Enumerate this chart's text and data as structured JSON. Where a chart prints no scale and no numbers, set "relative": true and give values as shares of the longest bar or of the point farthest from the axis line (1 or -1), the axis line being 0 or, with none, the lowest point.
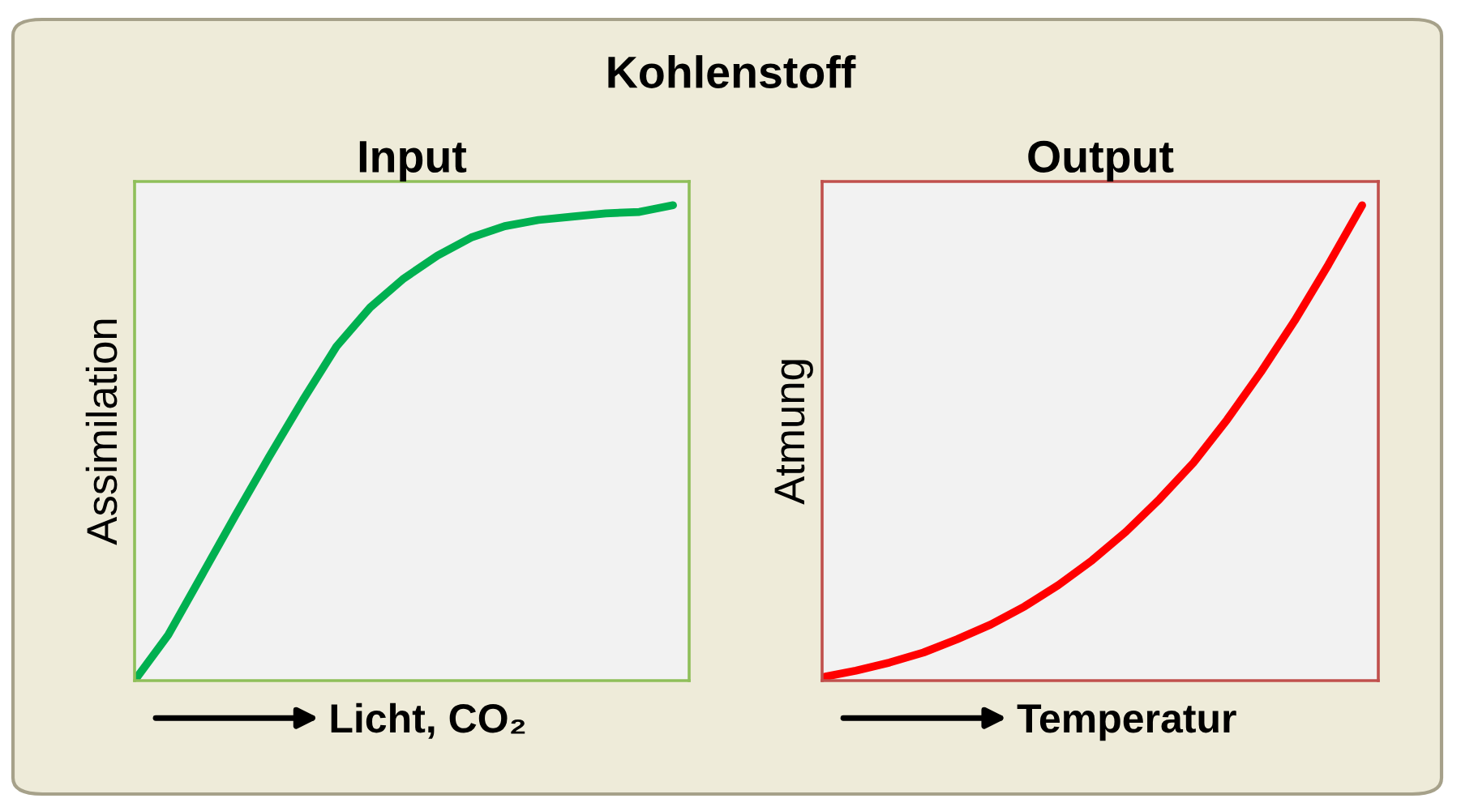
{
  "chart_data": [
    {
      "type": "line",
      "title": "Input",
      "xlabel": "Licht, CO₂",
      "ylabel": "Assimilation",
      "relative": true,
      "annotations": [
        "Kohlenstoff"
      ],
      "tick_labels": false,
      "legend": false,
      "categories": [
        null,
        null,
        null,
        null,
        null,
        null,
        null,
        null,
        null,
        null,
        null,
        null,
        null,
        null,
        null,
        null,
        null
      ],
      "series": [
        {
          "color": "#00b050",
          "values": [
            0,
            0.096,
            0.222,
            0.348,
            0.471,
            0.59,
            0.703,
            0.785,
            0.846,
            0.894,
            0.932,
            0.956,
            0.969,
            0.976,
            0.983,
            0.986,
            1
          ]
        }
      ]
    },
    {
      "type": "line",
      "title": "Output",
      "xlabel": "Temperatur",
      "ylabel": "Atmung",
      "relative": true,
      "tick_labels": false,
      "legend": false,
      "categories": [
        null,
        null,
        null,
        null,
        null,
        null,
        null,
        null,
        null,
        null,
        null,
        null,
        null,
        null,
        null,
        null,
        null
      ],
      "series": [
        {
          "color": "#ff0000",
          "values": [
            0.007,
            0.021,
            0.038,
            0.059,
            0.087,
            0.118,
            0.156,
            0.201,
            0.253,
            0.313,
            0.382,
            0.458,
            0.549,
            0.649,
            0.757,
            0.875,
            1
          ]
        }
      ]
    }
  ]
}
